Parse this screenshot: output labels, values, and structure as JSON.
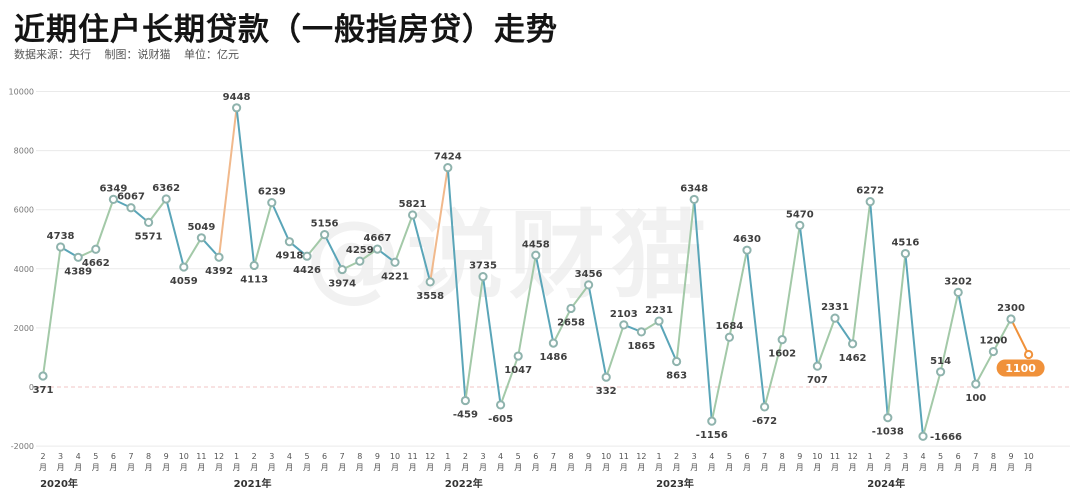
{
  "header": {
    "title": "近期住户长期贷款（一般指房贷）走势",
    "source": "数据来源：央行",
    "maker": "制图：说财猫",
    "unit": "单位：亿元"
  },
  "watermark": "@说财猫",
  "chart_data": {
    "type": "line",
    "title": "近期住户长期贷款（一般指房贷）走势",
    "xlabel": "",
    "ylabel": "",
    "unit": "亿元",
    "ylim": [
      -2000,
      10000
    ],
    "yticks": [
      -2000,
      0,
      2000,
      4000,
      6000,
      8000,
      10000
    ],
    "grid": true,
    "x": [
      "2020-02",
      "2020-03",
      "2020-04",
      "2020-05",
      "2020-06",
      "2020-07",
      "2020-08",
      "2020-09",
      "2020-10",
      "2020-11",
      "2020-12",
      "2021-01",
      "2021-02",
      "2021-03",
      "2021-04",
      "2021-05",
      "2021-06",
      "2021-07",
      "2021-08",
      "2021-09",
      "2021-10",
      "2021-11",
      "2021-12",
      "2022-01",
      "2022-02",
      "2022-03",
      "2022-04",
      "2022-05",
      "2022-06",
      "2022-07",
      "2022-08",
      "2022-09",
      "2022-10",
      "2022-11",
      "2022-12",
      "2023-01",
      "2023-02",
      "2023-03",
      "2023-04",
      "2023-05",
      "2023-06",
      "2023-07",
      "2023-08",
      "2023-09",
      "2023-10",
      "2023-11",
      "2023-12",
      "2024-01",
      "2024-02",
      "2024-03",
      "2024-04",
      "2024-05",
      "2024-06",
      "2024-07",
      "2024-08",
      "2024-09",
      "2024-10"
    ],
    "month_labels": [
      "2",
      "3",
      "4",
      "5",
      "6",
      "7",
      "8",
      "9",
      "10",
      "11",
      "12",
      "1",
      "2",
      "3",
      "4",
      "5",
      "6",
      "7",
      "8",
      "9",
      "10",
      "11",
      "12",
      "1",
      "2",
      "3",
      "4",
      "5",
      "6",
      "7",
      "8",
      "9",
      "10",
      "11",
      "12",
      "1",
      "2",
      "3",
      "4",
      "5",
      "6",
      "7",
      "8",
      "9",
      "10",
      "11",
      "12",
      "1",
      "2",
      "3",
      "4",
      "5",
      "6",
      "7",
      "8",
      "9",
      "10"
    ],
    "month_suffix": "月",
    "year_labels": [
      {
        "label": "2020年",
        "index": 0
      },
      {
        "label": "2021年",
        "index": 11
      },
      {
        "label": "2022年",
        "index": 23
      },
      {
        "label": "2023年",
        "index": 35
      },
      {
        "label": "2024年",
        "index": 47
      }
    ],
    "values": [
      371,
      4738,
      4389,
      4662,
      6349,
      6067,
      5571,
      6362,
      4059,
      5049,
      4392,
      9448,
      4113,
      6239,
      4918,
      4426,
      5156,
      3974,
      4259,
      4667,
      4221,
      5821,
      3558,
      7424,
      -459,
      3735,
      -605,
      1047,
      4458,
      1486,
      2658,
      3456,
      332,
      2103,
      1865,
      2231,
      863,
      6348,
      -1156,
      1684,
      4630,
      -672,
      1602,
      5470,
      707,
      2331,
      1462,
      6272,
      -1038,
      4516,
      -1666,
      514,
      3202,
      100,
      1200,
      2300,
      1100
    ],
    "label_above": [
      false,
      true,
      false,
      false,
      true,
      true,
      false,
      true,
      false,
      true,
      false,
      true,
      false,
      true,
      false,
      false,
      true,
      false,
      true,
      true,
      false,
      true,
      false,
      true,
      false,
      true,
      false,
      false,
      true,
      false,
      false,
      true,
      false,
      true,
      false,
      true,
      false,
      true,
      false,
      true,
      true,
      false,
      false,
      true,
      false,
      true,
      false,
      true,
      false,
      true,
      false,
      true,
      true,
      false,
      true,
      true,
      false
    ],
    "highlight_last": "1100",
    "colors": {
      "line_teal": "#5aa5b8",
      "line_orange": "#f1b98c",
      "line_green": "#a3c9a8",
      "marker_fill": "#ffffff",
      "marker_stroke": "#8fb3ad",
      "highlight": "#f0913a",
      "zero_line": "#f2c6c6",
      "grid": "#eaeaea"
    }
  }
}
